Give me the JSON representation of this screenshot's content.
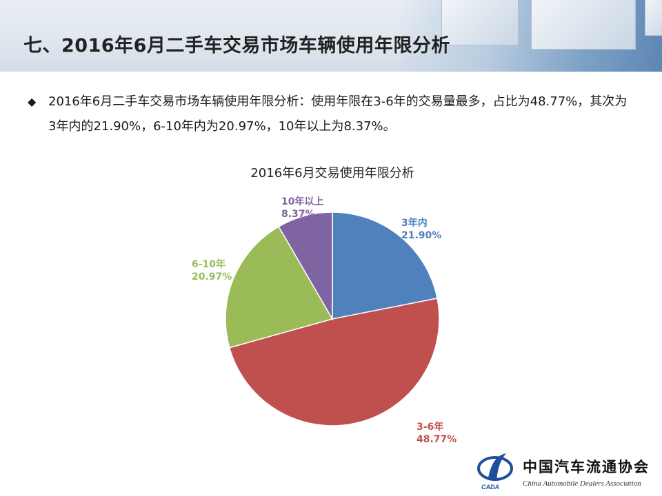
{
  "header": {
    "title": "七、2016年6月二手车交易市场车辆使用年限分析"
  },
  "bullet": {
    "text": "2016年6月二手车交易市场车辆使用年限分析：使用年限在3-6年的交易量最多，占比为48.77%，其次为3年内的21.90%，6-10年内为20.97%，10年以上为8.37%。"
  },
  "chart_data": {
    "type": "pie",
    "title": "2016年6月交易使用年限分析",
    "slices": [
      {
        "label": "3年内",
        "value": 21.9,
        "display": "21.90%",
        "color": "#4f81bd"
      },
      {
        "label": "3-6年",
        "value": 48.77,
        "display": "48.77%",
        "color": "#c0504d"
      },
      {
        "label": "6-10年",
        "value": 20.97,
        "display": "20.97%",
        "color": "#9bbb59"
      },
      {
        "label": "10年以上",
        "value": 8.37,
        "display": "8.37%",
        "color": "#8064a2"
      }
    ],
    "start_angle_deg": 0,
    "direction": "clockwise",
    "legend": "none"
  },
  "logo": {
    "name_cn": "中国汽车流通协会",
    "name_en": "China Automobile Dealers Association",
    "mark": "CADA"
  }
}
